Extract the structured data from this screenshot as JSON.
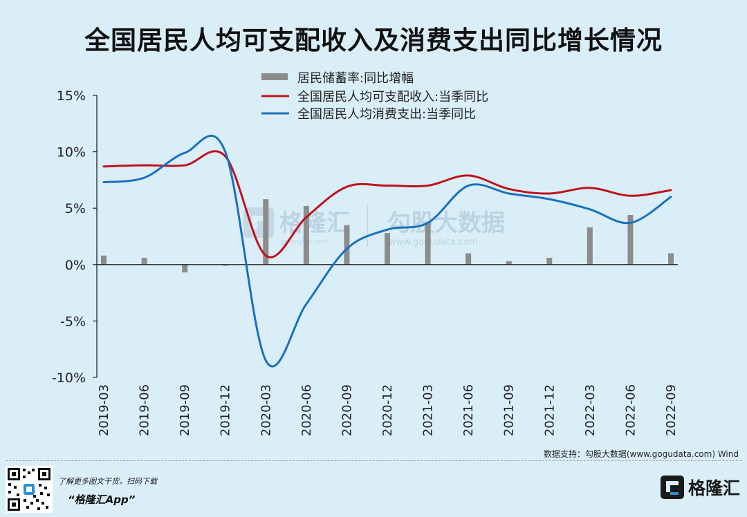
{
  "header": {
    "title": "全国居民人均可支配收入及消费支出同比增长情况"
  },
  "chart_data": {
    "type": "bar",
    "categories": [
      "2019-03",
      "2019-06",
      "2019-09",
      "2019-12",
      "2020-03",
      "2020-06",
      "2020-09",
      "2020-12",
      "2021-03",
      "2021-06",
      "2021-09",
      "2021-12",
      "2022-03",
      "2022-06",
      "2022-09"
    ],
    "ylim": [
      -10,
      15
    ],
    "yticks": [
      15,
      10,
      5,
      0,
      -5,
      -10
    ],
    "ytick_labels": [
      "15%",
      "10%",
      "5%",
      "0%",
      "-5%",
      "-10%"
    ],
    "grid": false,
    "legend_position": "top-center",
    "series": [
      {
        "name": "居民储蓄率:同比增幅",
        "type": "bar",
        "color": "#8c8c8c",
        "values": [
          0.8,
          0.6,
          -0.7,
          -0.1,
          5.8,
          5.2,
          3.5,
          2.8,
          3.7,
          1.0,
          0.3,
          0.6,
          3.3,
          4.4,
          1.0
        ]
      },
      {
        "name": "全国居民人均可支配收入:当季同比",
        "type": "line",
        "color": "#c0121c",
        "values": [
          8.7,
          8.8,
          8.8,
          9.6,
          0.8,
          4.2,
          6.9,
          7.0,
          7.0,
          7.9,
          6.7,
          6.3,
          6.8,
          6.1,
          6.6
        ]
      },
      {
        "name": "全国居民人均消费支出:当季同比",
        "type": "line",
        "color": "#1a6fbf",
        "values": [
          7.3,
          7.7,
          9.9,
          10.0,
          -8.5,
          -3.5,
          1.4,
          3.1,
          3.7,
          7.0,
          6.3,
          5.8,
          4.9,
          3.7,
          6.0
        ]
      }
    ]
  },
  "watermark": {
    "brand": "格隆汇",
    "brand_url": "gelonghui.com",
    "partner": "勾股大数据",
    "partner_url": "www.gogudata.com"
  },
  "footer": {
    "source": "数据支持：勾股大数据(www.gogudata.com)  Wind",
    "promo_line": "了解更多图文干货，扫码下载",
    "promo_app": "“格隆汇App”",
    "brand_name": "格隆汇",
    "qr_icon": "qr-code-icon",
    "logo_icon": "gelonghui-logo-icon"
  }
}
